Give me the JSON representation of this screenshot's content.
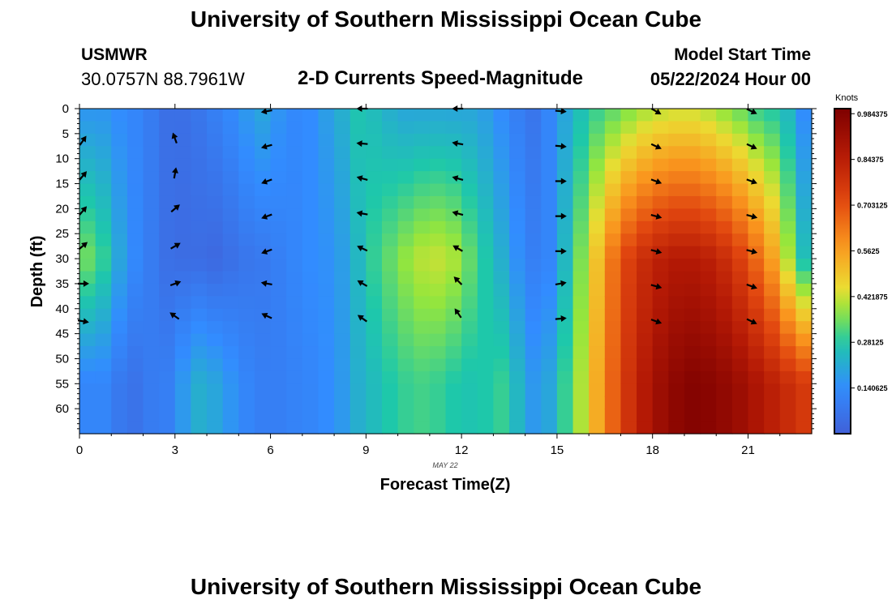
{
  "header": {
    "title": "University of Southern Mississippi Ocean Cube",
    "station_id": "USMWR",
    "station_coords": "30.0757N  88.7961W",
    "subtitle": "2-D Currents Speed-Magnitude",
    "model_start_label": "Model Start Time",
    "model_start_value": "05/22/2024 Hour 00"
  },
  "footer": {
    "title_repeat": "University of Southern Mississippi Ocean Cube"
  },
  "chart_data": {
    "type": "heatmap",
    "title": "2-D Currents Speed-Magnitude",
    "xlabel": "Forecast Time(Z)",
    "ylabel": "Depth (ft)",
    "date_label": "MAY 22",
    "xlim": [
      0,
      23
    ],
    "ylim": [
      0,
      65
    ],
    "x_ticks": [
      0,
      3,
      6,
      9,
      12,
      15,
      18,
      21
    ],
    "y_ticks": [
      0,
      5,
      10,
      15,
      20,
      25,
      30,
      35,
      40,
      45,
      50,
      55,
      60
    ],
    "colorbar": {
      "label": "Knots",
      "min": 0.0,
      "max": 1.0,
      "ticks": [
        "0.140625",
        "0.28125",
        "0.421875",
        "0.5625",
        "0.703125",
        "0.84375",
        "0.984375"
      ]
    },
    "speed_profiles": [
      {
        "hour": 0.0,
        "surface": 0.16,
        "mid": 0.35,
        "deep": 0.12
      },
      {
        "hour": 0.5,
        "surface": 0.16,
        "mid": 0.3,
        "deep": 0.12
      },
      {
        "hour": 1.0,
        "surface": 0.14,
        "mid": 0.2,
        "deep": 0.08
      },
      {
        "hour": 1.5,
        "surface": 0.12,
        "mid": 0.13,
        "deep": 0.06
      },
      {
        "hour": 2.0,
        "surface": 0.09,
        "mid": 0.09,
        "deep": 0.09
      },
      {
        "hour": 2.5,
        "surface": 0.05,
        "mid": 0.05,
        "deep": 0.1
      },
      {
        "hour": 3.0,
        "surface": 0.05,
        "mid": 0.04,
        "deep": 0.17
      },
      {
        "hour": 3.5,
        "surface": 0.07,
        "mid": 0.04,
        "deep": 0.22
      },
      {
        "hour": 4.0,
        "surface": 0.1,
        "mid": 0.03,
        "deep": 0.2
      },
      {
        "hour": 4.5,
        "surface": 0.13,
        "mid": 0.05,
        "deep": 0.16
      },
      {
        "hour": 5.0,
        "surface": 0.17,
        "mid": 0.07,
        "deep": 0.12
      },
      {
        "hour": 5.5,
        "surface": 0.2,
        "mid": 0.08,
        "deep": 0.1
      },
      {
        "hour": 6.0,
        "surface": 0.16,
        "mid": 0.1,
        "deep": 0.1
      },
      {
        "hour": 6.5,
        "surface": 0.13,
        "mid": 0.12,
        "deep": 0.11
      },
      {
        "hour": 7.0,
        "surface": 0.14,
        "mid": 0.14,
        "deep": 0.12
      },
      {
        "hour": 7.5,
        "surface": 0.18,
        "mid": 0.15,
        "deep": 0.14
      },
      {
        "hour": 8.0,
        "surface": 0.22,
        "mid": 0.18,
        "deep": 0.17
      },
      {
        "hour": 8.5,
        "surface": 0.27,
        "mid": 0.24,
        "deep": 0.22
      },
      {
        "hour": 9.0,
        "surface": 0.25,
        "mid": 0.3,
        "deep": 0.25
      },
      {
        "hour": 9.5,
        "surface": 0.22,
        "mid": 0.34,
        "deep": 0.28
      },
      {
        "hour": 10.0,
        "surface": 0.2,
        "mid": 0.38,
        "deep": 0.3
      },
      {
        "hour": 10.5,
        "surface": 0.2,
        "mid": 0.41,
        "deep": 0.31
      },
      {
        "hour": 11.0,
        "surface": 0.2,
        "mid": 0.42,
        "deep": 0.3
      },
      {
        "hour": 11.5,
        "surface": 0.2,
        "mid": 0.4,
        "deep": 0.28
      },
      {
        "hour": 12.0,
        "surface": 0.2,
        "mid": 0.34,
        "deep": 0.27
      },
      {
        "hour": 12.5,
        "surface": 0.18,
        "mid": 0.28,
        "deep": 0.28
      },
      {
        "hour": 13.0,
        "surface": 0.14,
        "mid": 0.22,
        "deep": 0.3
      },
      {
        "hour": 13.5,
        "surface": 0.1,
        "mid": 0.15,
        "deep": 0.24
      },
      {
        "hour": 14.0,
        "surface": 0.07,
        "mid": 0.1,
        "deep": 0.17
      },
      {
        "hour": 14.5,
        "surface": 0.12,
        "mid": 0.12,
        "deep": 0.2
      },
      {
        "hour": 15.0,
        "surface": 0.2,
        "mid": 0.24,
        "deep": 0.3
      },
      {
        "hour": 15.5,
        "surface": 0.26,
        "mid": 0.36,
        "deep": 0.4
      },
      {
        "hour": 16.0,
        "surface": 0.3,
        "mid": 0.5,
        "deep": 0.54
      },
      {
        "hour": 16.5,
        "surface": 0.33,
        "mid": 0.64,
        "deep": 0.67
      },
      {
        "hour": 17.0,
        "surface": 0.36,
        "mid": 0.74,
        "deep": 0.78
      },
      {
        "hour": 17.5,
        "surface": 0.39,
        "mid": 0.8,
        "deep": 0.86
      },
      {
        "hour": 18.0,
        "surface": 0.41,
        "mid": 0.84,
        "deep": 0.92
      },
      {
        "hour": 18.5,
        "surface": 0.42,
        "mid": 0.86,
        "deep": 0.96
      },
      {
        "hour": 19.0,
        "surface": 0.42,
        "mid": 0.86,
        "deep": 0.98
      },
      {
        "hour": 19.5,
        "surface": 0.4,
        "mid": 0.84,
        "deep": 0.97
      },
      {
        "hour": 20.0,
        "surface": 0.37,
        "mid": 0.8,
        "deep": 0.95
      },
      {
        "hour": 20.5,
        "surface": 0.34,
        "mid": 0.74,
        "deep": 0.92
      },
      {
        "hour": 21.0,
        "surface": 0.3,
        "mid": 0.66,
        "deep": 0.88
      },
      {
        "hour": 21.5,
        "surface": 0.28,
        "mid": 0.56,
        "deep": 0.84
      },
      {
        "hour": 22.0,
        "surface": 0.24,
        "mid": 0.4,
        "deep": 0.8
      },
      {
        "hour": 22.5,
        "surface": 0.14,
        "mid": 0.26,
        "deep": 0.76
      }
    ],
    "vectors": [
      {
        "hour": 0.1,
        "depth": 6.5,
        "dir": -55
      },
      {
        "hour": 0.1,
        "depth": 13.5,
        "dir": -50
      },
      {
        "hour": 0.1,
        "depth": 20.5,
        "dir": -50
      },
      {
        "hour": 0.1,
        "depth": 27.5,
        "dir": -40
      },
      {
        "hour": 0.1,
        "depth": 35,
        "dir": 0
      },
      {
        "hour": 0.1,
        "depth": 42.5,
        "dir": 10
      },
      {
        "hour": 3.0,
        "depth": 6,
        "dir": -110
      },
      {
        "hour": 3.0,
        "depth": 13,
        "dir": -80
      },
      {
        "hour": 3.0,
        "depth": 20,
        "dir": -40
      },
      {
        "hour": 3.0,
        "depth": 27.5,
        "dir": -30
      },
      {
        "hour": 3.0,
        "depth": 35,
        "dir": -20
      },
      {
        "hour": 3.0,
        "depth": 41.5,
        "dir": 215
      },
      {
        "hour": 5.9,
        "depth": 0.5,
        "dir": 170
      },
      {
        "hour": 5.9,
        "depth": 7.5,
        "dir": 165
      },
      {
        "hour": 5.9,
        "depth": 14.5,
        "dir": 160
      },
      {
        "hour": 5.9,
        "depth": 21.5,
        "dir": 160
      },
      {
        "hour": 5.9,
        "depth": 28.5,
        "dir": 160
      },
      {
        "hour": 5.9,
        "depth": 35,
        "dir": 190
      },
      {
        "hour": 5.9,
        "depth": 41.5,
        "dir": 205
      },
      {
        "hour": 8.9,
        "depth": 0,
        "dir": 180
      },
      {
        "hour": 8.9,
        "depth": 7,
        "dir": 185
      },
      {
        "hour": 8.9,
        "depth": 14,
        "dir": 195
      },
      {
        "hour": 8.9,
        "depth": 21,
        "dir": 190
      },
      {
        "hour": 8.9,
        "depth": 28,
        "dir": 205
      },
      {
        "hour": 8.9,
        "depth": 35,
        "dir": 210
      },
      {
        "hour": 8.9,
        "depth": 42,
        "dir": 215
      },
      {
        "hour": 11.9,
        "depth": 0,
        "dir": 180
      },
      {
        "hour": 11.9,
        "depth": 7,
        "dir": 190
      },
      {
        "hour": 11.9,
        "depth": 14,
        "dir": 195
      },
      {
        "hour": 11.9,
        "depth": 21,
        "dir": 195
      },
      {
        "hour": 11.9,
        "depth": 28,
        "dir": 210
      },
      {
        "hour": 11.9,
        "depth": 34.5,
        "dir": 225
      },
      {
        "hour": 11.9,
        "depth": 41,
        "dir": 235
      },
      {
        "hour": 15.1,
        "depth": 0.5,
        "dir": 5
      },
      {
        "hour": 15.1,
        "depth": 7.5,
        "dir": 5
      },
      {
        "hour": 15.1,
        "depth": 14.5,
        "dir": 0
      },
      {
        "hour": 15.1,
        "depth": 21.5,
        "dir": 0
      },
      {
        "hour": 15.1,
        "depth": 28.5,
        "dir": 0
      },
      {
        "hour": 15.1,
        "depth": 35,
        "dir": -10
      },
      {
        "hour": 15.1,
        "depth": 42,
        "dir": -5
      },
      {
        "hour": 18.1,
        "depth": 0.5,
        "dir": 30
      },
      {
        "hour": 18.1,
        "depth": 7.5,
        "dir": 25
      },
      {
        "hour": 18.1,
        "depth": 14.5,
        "dir": 20
      },
      {
        "hour": 18.1,
        "depth": 21.5,
        "dir": 15
      },
      {
        "hour": 18.1,
        "depth": 28.5,
        "dir": 15
      },
      {
        "hour": 18.1,
        "depth": 35.5,
        "dir": 15
      },
      {
        "hour": 18.1,
        "depth": 42.5,
        "dir": 20
      },
      {
        "hour": 21.1,
        "depth": 0.5,
        "dir": 25
      },
      {
        "hour": 21.1,
        "depth": 7.5,
        "dir": 25
      },
      {
        "hour": 21.1,
        "depth": 14.5,
        "dir": 20
      },
      {
        "hour": 21.1,
        "depth": 21.5,
        "dir": 15
      },
      {
        "hour": 21.1,
        "depth": 28.5,
        "dir": 15
      },
      {
        "hour": 21.1,
        "depth": 35.5,
        "dir": 20
      },
      {
        "hour": 21.1,
        "depth": 42.5,
        "dir": 25
      }
    ]
  }
}
